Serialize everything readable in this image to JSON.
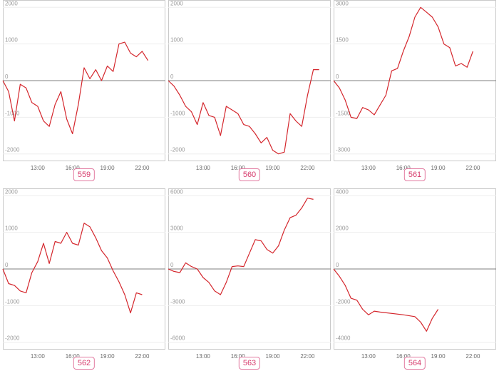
{
  "accent_color": "#d63b6c",
  "line_color": "#d4262c",
  "chart_data": [
    {
      "type": "line",
      "panel_label": "559",
      "x_hours": [
        10,
        10.5,
        11,
        11.5,
        12,
        12.5,
        13,
        13.5,
        14,
        14.5,
        15,
        15.5,
        16,
        16.5,
        17,
        17.5,
        18,
        18.5,
        19,
        19.5,
        20,
        20.5,
        21,
        21.5,
        22,
        22.5
      ],
      "y": [
        0,
        -300,
        -1100,
        -100,
        -200,
        -600,
        -700,
        -1100,
        -1250,
        -650,
        -300,
        -1050,
        -1450,
        -650,
        350,
        50,
        300,
        0,
        400,
        250,
        1000,
        1050,
        750,
        650,
        800,
        550
      ],
      "ylim": [
        -2200,
        2200
      ],
      "yticks": [
        2000,
        1000,
        0,
        -1000,
        -2000
      ],
      "xticks": [
        "13:00",
        "16:00",
        "19:00",
        "22:00"
      ],
      "xtick_hours": [
        13,
        16,
        19,
        22
      ],
      "grid": true
    },
    {
      "type": "line",
      "panel_label": "560",
      "x_hours": [
        10,
        10.5,
        11,
        11.5,
        12,
        12.5,
        13,
        13.5,
        14,
        14.5,
        15,
        15.5,
        16,
        16.5,
        17,
        17.5,
        18,
        18.5,
        19,
        19.5,
        20,
        20.5,
        21,
        21.5,
        22,
        22.5,
        23
      ],
      "y": [
        0,
        -150,
        -400,
        -700,
        -850,
        -1200,
        -600,
        -950,
        -1000,
        -1500,
        -700,
        -800,
        -900,
        -1200,
        -1250,
        -1450,
        -1700,
        -1550,
        -1900,
        -2000,
        -1950,
        -900,
        -1100,
        -1250,
        -400,
        300,
        300
      ],
      "ylim": [
        -2200,
        2200
      ],
      "yticks": [
        2000,
        1000,
        0,
        -1000,
        -2000
      ],
      "xticks": [
        "13:00",
        "16:00",
        "19:00",
        "22:00"
      ],
      "xtick_hours": [
        13,
        16,
        19,
        22
      ],
      "grid": true
    },
    {
      "type": "line",
      "panel_label": "561",
      "x_hours": [
        10,
        10.5,
        11,
        11.5,
        12,
        12.5,
        13,
        13.5,
        14,
        14.5,
        15,
        15.5,
        16,
        16.5,
        17,
        17.5,
        18,
        18.5,
        19,
        19.5,
        20,
        20.5,
        21,
        21.5,
        22
      ],
      "y": [
        0,
        -300,
        -800,
        -1500,
        -1550,
        -1100,
        -1200,
        -1400,
        -1000,
        -600,
        400,
        500,
        1200,
        1800,
        2600,
        3000,
        2800,
        2600,
        2200,
        1500,
        1350,
        600,
        700,
        550,
        1200
      ],
      "ylim": [
        -3300,
        3300
      ],
      "yticks": [
        3000,
        1500,
        0,
        -1500,
        -3000
      ],
      "xticks": [
        "13:00",
        "16:00",
        "19:00",
        "22:00"
      ],
      "xtick_hours": [
        13,
        16,
        19,
        22
      ],
      "grid": true
    },
    {
      "type": "line",
      "panel_label": "562",
      "x_hours": [
        10,
        10.5,
        11,
        11.5,
        12,
        12.5,
        13,
        13.5,
        14,
        14.5,
        15,
        15.5,
        16,
        16.5,
        17,
        17.5,
        18,
        18.5,
        19,
        19.5,
        20,
        20.5,
        21,
        21.5,
        22
      ],
      "y": [
        0,
        -400,
        -450,
        -600,
        -650,
        -100,
        200,
        700,
        150,
        750,
        700,
        1000,
        700,
        650,
        1250,
        1150,
        850,
        500,
        300,
        -50,
        -350,
        -700,
        -1200,
        -650,
        -700
      ],
      "ylim": [
        -2200,
        2200
      ],
      "yticks": [
        2000,
        1000,
        0,
        -1000,
        -2000
      ],
      "xticks": [
        "13:00",
        "16:00",
        "19:00",
        "22:00"
      ],
      "xtick_hours": [
        13,
        16,
        19,
        22
      ],
      "grid": true
    },
    {
      "type": "line",
      "panel_label": "563",
      "x_hours": [
        10,
        10.5,
        11,
        11.5,
        12,
        12.5,
        13,
        13.5,
        14,
        14.5,
        15,
        15.5,
        16,
        16.5,
        17,
        17.5,
        18,
        18.5,
        19,
        19.5,
        20,
        20.5,
        21,
        21.5,
        22,
        22.5
      ],
      "y": [
        0,
        -200,
        -300,
        500,
        200,
        0,
        -700,
        -1100,
        -1800,
        -2100,
        -1100,
        200,
        250,
        200,
        1300,
        2400,
        2300,
        1600,
        1300,
        1900,
        3200,
        4200,
        4400,
        5000,
        5800,
        5700
      ],
      "ylim": [
        -6600,
        6600
      ],
      "yticks": [
        6000,
        3000,
        0,
        -3000,
        -6000
      ],
      "xticks": [
        "13:00",
        "16:00",
        "19:00",
        "22:00"
      ],
      "xtick_hours": [
        13,
        16,
        19,
        22
      ],
      "grid": true
    },
    {
      "type": "line",
      "panel_label": "564",
      "x_hours": [
        10,
        10.5,
        11,
        11.5,
        12,
        12.5,
        13,
        13.5,
        14,
        16,
        17,
        17.5,
        18,
        18.5,
        19
      ],
      "y": [
        0,
        -400,
        -900,
        -1600,
        -1700,
        -2200,
        -2500,
        -2300,
        -2350,
        -2500,
        -2600,
        -2900,
        -3400,
        -2700,
        -2200
      ],
      "ylim": [
        -4400,
        4400
      ],
      "yticks": [
        4000,
        2000,
        0,
        -2000,
        -4000
      ],
      "xticks": [
        "13:00",
        "16:00",
        "19:00",
        "22:00"
      ],
      "xtick_hours": [
        13,
        16,
        19,
        22
      ],
      "grid": true
    }
  ]
}
